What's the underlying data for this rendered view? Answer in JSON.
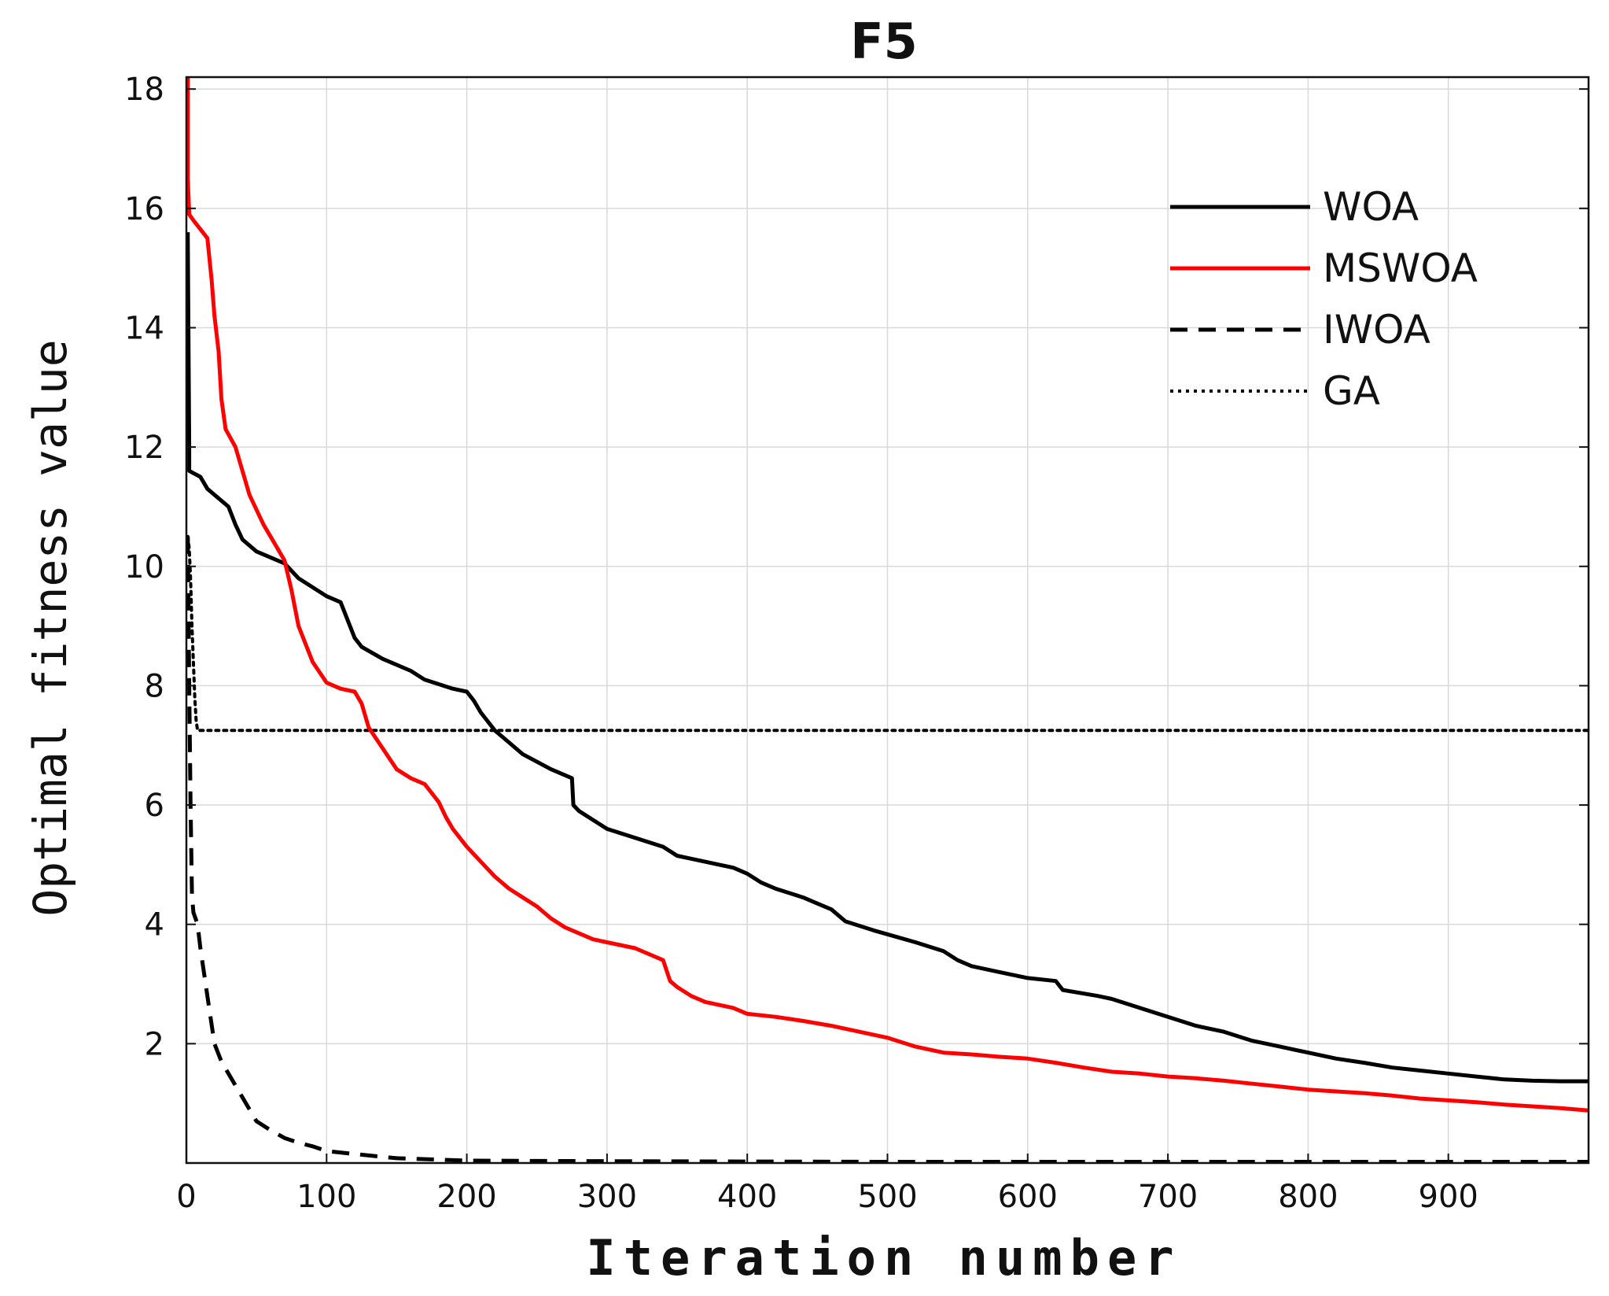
{
  "chart_data": {
    "type": "line",
    "title": "F5",
    "xlabel": "Iteration number",
    "ylabel": "Optimal fitness value",
    "xlim": [
      0,
      1000
    ],
    "ylim": [
      0,
      18.2
    ],
    "x_ticks": [
      0,
      100,
      200,
      300,
      400,
      500,
      600,
      700,
      800,
      900
    ],
    "y_ticks": [
      2,
      4,
      6,
      8,
      10,
      12,
      14,
      16,
      18
    ],
    "grid": true,
    "legend_position": "top-right",
    "series": [
      {
        "name": "WOA",
        "color": "#000000",
        "style": "solid",
        "x": [
          1,
          1,
          2,
          2,
          10,
          15,
          30,
          35,
          40,
          50,
          60,
          70,
          80,
          90,
          100,
          110,
          120,
          125,
          140,
          160,
          170,
          190,
          200,
          205,
          210,
          220,
          240,
          260,
          275,
          276,
          280,
          300,
          320,
          340,
          350,
          360,
          380,
          390,
          400,
          410,
          420,
          440,
          450,
          460,
          470,
          490,
          520,
          540,
          550,
          560,
          580,
          600,
          620,
          625,
          650,
          660,
          680,
          700,
          720,
          740,
          760,
          780,
          800,
          820,
          840,
          860,
          880,
          900,
          920,
          940,
          960,
          980,
          1000
        ],
        "y": [
          15.6,
          15.5,
          12,
          11.6,
          11.5,
          11.3,
          11.0,
          10.7,
          10.45,
          10.25,
          10.15,
          10.05,
          9.8,
          9.65,
          9.5,
          9.4,
          8.8,
          8.65,
          8.45,
          8.25,
          8.1,
          7.95,
          7.9,
          7.75,
          7.55,
          7.25,
          6.85,
          6.6,
          6.45,
          6.0,
          5.9,
          5.6,
          5.45,
          5.3,
          5.15,
          5.1,
          5.0,
          4.95,
          4.85,
          4.7,
          4.6,
          4.45,
          4.35,
          4.25,
          4.05,
          3.9,
          3.7,
          3.55,
          3.4,
          3.3,
          3.2,
          3.1,
          3.05,
          2.9,
          2.8,
          2.75,
          2.6,
          2.45,
          2.3,
          2.2,
          2.05,
          1.95,
          1.85,
          1.75,
          1.68,
          1.6,
          1.55,
          1.5,
          1.45,
          1.4,
          1.38,
          1.37,
          1.37
        ]
      },
      {
        "name": "MSWOA",
        "color": "#ff0000",
        "style": "solid",
        "x": [
          1,
          1,
          2,
          5,
          15,
          18,
          20,
          23,
          25,
          28,
          35,
          40,
          45,
          50,
          55,
          60,
          65,
          70,
          75,
          80,
          90,
          100,
          110,
          120,
          125,
          130,
          140,
          150,
          160,
          170,
          180,
          185,
          190,
          200,
          210,
          220,
          230,
          240,
          250,
          260,
          270,
          280,
          290,
          300,
          320,
          340,
          345,
          350,
          360,
          370,
          390,
          400,
          420,
          440,
          460,
          480,
          500,
          520,
          540,
          560,
          580,
          600,
          620,
          640,
          660,
          680,
          700,
          720,
          740,
          760,
          780,
          800,
          820,
          840,
          860,
          880,
          900,
          920,
          940,
          960,
          980,
          1000
        ],
        "y": [
          18.2,
          16.5,
          15.9,
          15.8,
          15.5,
          14.8,
          14.2,
          13.6,
          12.8,
          12.3,
          12.0,
          11.6,
          11.2,
          10.95,
          10.7,
          10.5,
          10.3,
          10.1,
          9.6,
          9.0,
          8.4,
          8.05,
          7.95,
          7.9,
          7.7,
          7.3,
          6.95,
          6.6,
          6.45,
          6.35,
          6.05,
          5.8,
          5.6,
          5.3,
          5.05,
          4.8,
          4.6,
          4.45,
          4.3,
          4.1,
          3.95,
          3.85,
          3.75,
          3.7,
          3.6,
          3.4,
          3.05,
          2.95,
          2.8,
          2.7,
          2.6,
          2.5,
          2.45,
          2.38,
          2.3,
          2.2,
          2.1,
          1.95,
          1.85,
          1.82,
          1.78,
          1.75,
          1.68,
          1.6,
          1.53,
          1.5,
          1.45,
          1.42,
          1.38,
          1.33,
          1.28,
          1.23,
          1.2,
          1.17,
          1.13,
          1.08,
          1.05,
          1.02,
          0.98,
          0.95,
          0.92,
          0.88
        ]
      },
      {
        "name": "IWOA",
        "color": "#000000",
        "style": "dashed",
        "x": [
          1,
          2,
          3,
          4,
          5,
          8,
          10,
          15,
          20,
          25,
          30,
          40,
          50,
          60,
          70,
          80,
          90,
          100,
          120,
          150,
          200,
          300,
          500,
          1000
        ],
        "y": [
          10.5,
          8.0,
          6.0,
          4.5,
          4.2,
          4.0,
          3.6,
          2.8,
          2.0,
          1.7,
          1.5,
          1.1,
          0.7,
          0.55,
          0.42,
          0.34,
          0.28,
          0.2,
          0.15,
          0.08,
          0.04,
          0.03,
          0.02,
          0.02
        ]
      },
      {
        "name": "GA",
        "color": "#000000",
        "style": "dotted",
        "x": [
          1,
          2,
          3,
          4,
          5,
          6,
          7,
          8,
          1000
        ],
        "y": [
          10.5,
          10.3,
          9.8,
          9.0,
          8.4,
          7.8,
          7.4,
          7.25,
          7.25
        ]
      }
    ]
  }
}
